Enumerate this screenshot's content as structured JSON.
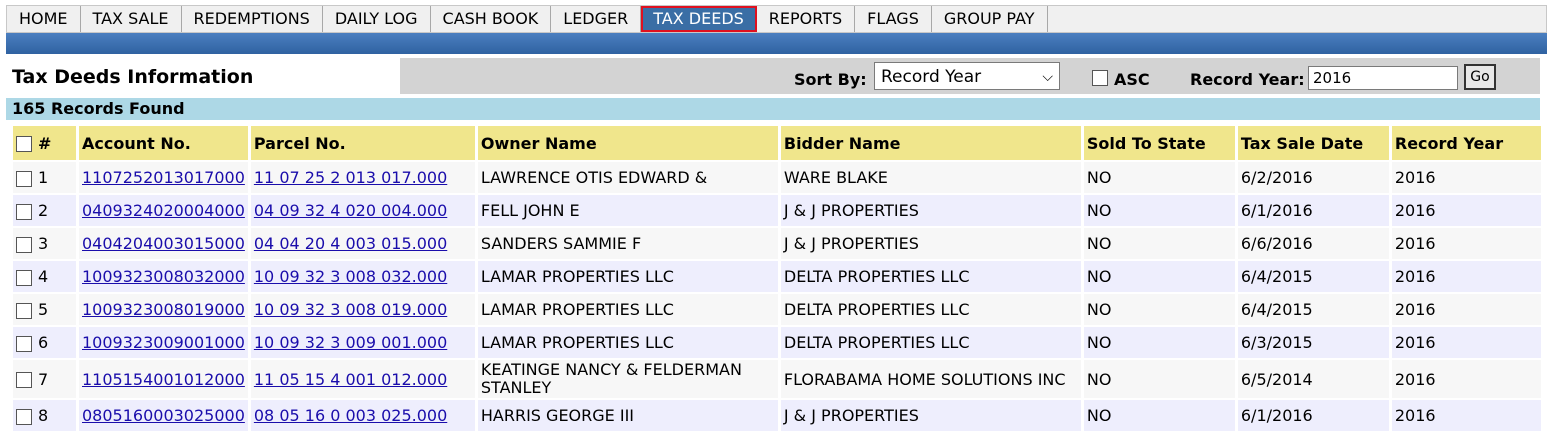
{
  "nav": {
    "items": [
      {
        "label": "HOME"
      },
      {
        "label": "TAX SALE"
      },
      {
        "label": "REDEMPTIONS"
      },
      {
        "label": "DAILY LOG"
      },
      {
        "label": "CASH BOOK"
      },
      {
        "label": "LEDGER"
      },
      {
        "label": "TAX DEEDS",
        "active": true
      },
      {
        "label": "REPORTS"
      },
      {
        "label": "FLAGS"
      },
      {
        "label": "GROUP PAY"
      }
    ]
  },
  "header": {
    "title": "Tax Deeds Information",
    "sort_by_label": "Sort By:",
    "sort_by_value": "Record Year",
    "asc_label": "ASC",
    "record_year_label": "Record Year:",
    "record_year_value": "2016",
    "go_label": "Go"
  },
  "records_found": "165 Records Found",
  "table": {
    "columns": [
      "#",
      "Account No.",
      "Parcel No.",
      "Owner Name",
      "Bidder Name",
      "Sold To State",
      "Tax Sale Date",
      "Record Year"
    ],
    "rows": [
      {
        "num": "1",
        "account": "1107252013017000",
        "parcel": "11 07 25 2 013 017.000",
        "owner": "LAWRENCE OTIS EDWARD &",
        "bidder": "WARE BLAKE",
        "sold": "NO",
        "date": "6/2/2016",
        "year": "2016"
      },
      {
        "num": "2",
        "account": "0409324020004000",
        "parcel": "04 09 32 4 020 004.000",
        "owner": "FELL JOHN E",
        "bidder": "J & J PROPERTIES",
        "sold": "NO",
        "date": "6/1/2016",
        "year": "2016"
      },
      {
        "num": "3",
        "account": "0404204003015000",
        "parcel": "04 04 20 4 003 015.000",
        "owner": "SANDERS SAMMIE F",
        "bidder": "J & J PROPERTIES",
        "sold": "NO",
        "date": "6/6/2016",
        "year": "2016"
      },
      {
        "num": "4",
        "account": "1009323008032000",
        "parcel": "10 09 32 3 008 032.000",
        "owner": "LAMAR PROPERTIES LLC",
        "bidder": "DELTA PROPERTIES LLC",
        "sold": "NO",
        "date": "6/4/2015",
        "year": "2016"
      },
      {
        "num": "5",
        "account": "1009323008019000",
        "parcel": "10 09 32 3 008 019.000",
        "owner": "LAMAR PROPERTIES LLC",
        "bidder": "DELTA PROPERTIES LLC",
        "sold": "NO",
        "date": "6/4/2015",
        "year": "2016"
      },
      {
        "num": "6",
        "account": "1009323009001000",
        "parcel": "10 09 32 3 009 001.000",
        "owner": "LAMAR PROPERTIES LLC",
        "bidder": "DELTA PROPERTIES LLC",
        "sold": "NO",
        "date": "6/3/2015",
        "year": "2016"
      },
      {
        "num": "7",
        "account": "1105154001012000",
        "parcel": "11 05 15 4 001 012.000",
        "owner": "KEATINGE NANCY & FELDERMAN STANLEY",
        "bidder": "FLORABAMA HOME SOLUTIONS INC",
        "sold": "NO",
        "date": "6/5/2014",
        "year": "2016"
      },
      {
        "num": "8",
        "account": "0805160003025000",
        "parcel": "08 05 16 0 003 025.000",
        "owner": "HARRIS GEORGE III",
        "bidder": "J & J PROPERTIES",
        "sold": "NO",
        "date": "6/1/2016",
        "year": "2016"
      }
    ]
  },
  "colors": {
    "active_tab": "#3a6ea5",
    "active_outline": "#e0101f",
    "header_band": "#2f62a1",
    "records_bar": "#add8e6",
    "column_header": "#f0e68c",
    "link": "#1a0dab"
  }
}
